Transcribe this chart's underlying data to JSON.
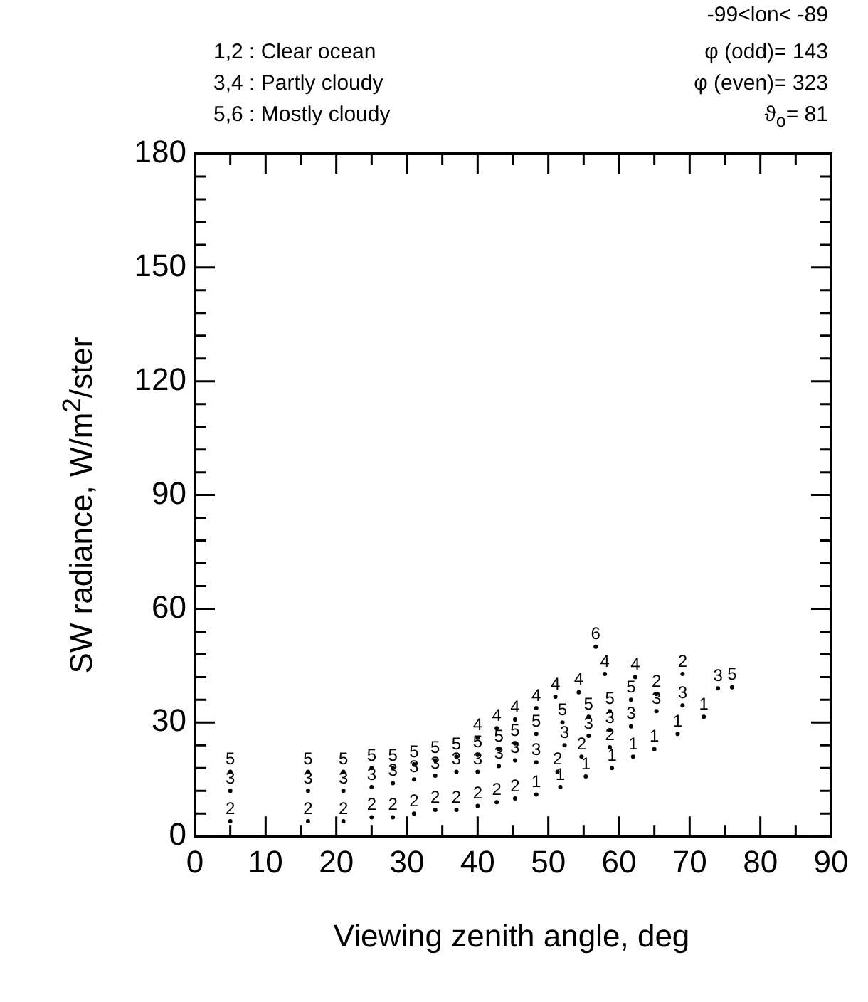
{
  "chart_data": {
    "type": "scatter",
    "xlabel": "Viewing zenith angle, deg",
    "ylabel": "SW radiance, W/m$^{2}$/ster",
    "annotations": [
      "-99<lon< -89",
      "1,2 : Clear ocean",
      "φ (odd)= 143",
      "3,4 : Partly cloudy",
      "φ (even)= 323",
      "5,6 : Mostly cloudy",
      "ϑ$_{o}$= 81"
    ],
    "xlim": [
      0,
      90
    ],
    "xticks": [
      0,
      {
        "value": 5,
        "label": null
      },
      10,
      {
        "value": 15,
        "label": null
      },
      20,
      {
        "value": 25,
        "label": null
      },
      30,
      {
        "value": 35,
        "label": null
      },
      40,
      {
        "value": 45,
        "label": null
      },
      50,
      {
        "value": 55,
        "label": null
      },
      60,
      {
        "value": 65,
        "label": null
      },
      70,
      {
        "value": 75,
        "label": null
      },
      80,
      {
        "value": 85,
        "label": null
      },
      90
    ],
    "ylim": [
      0,
      180
    ],
    "yticks": [
      0,
      {
        "value": 6,
        "label": null
      },
      {
        "value": 12,
        "label": null
      },
      {
        "value": 18,
        "label": null
      },
      {
        "value": 24,
        "label": null
      },
      30,
      {
        "value": 36,
        "label": null
      },
      {
        "value": 42,
        "label": null
      },
      {
        "value": 48,
        "label": null
      },
      {
        "value": 54,
        "label": null
      },
      60,
      {
        "value": 66,
        "label": null
      },
      {
        "value": 72,
        "label": null
      },
      {
        "value": 78,
        "label": null
      },
      {
        "value": 84,
        "label": null
      },
      90,
      {
        "value": 96,
        "label": null
      },
      {
        "value": 102,
        "label": null
      },
      {
        "value": 108,
        "label": null
      },
      {
        "value": 114,
        "label": null
      },
      120,
      {
        "value": 126,
        "label": null
      },
      {
        "value": 132,
        "label": null
      },
      {
        "value": 138,
        "label": null
      },
      {
        "value": 144,
        "label": null
      },
      150,
      {
        "value": 156,
        "label": null
      },
      {
        "value": 162,
        "label": null
      },
      {
        "value": 168,
        "label": null
      },
      {
        "value": 174,
        "label": null
      },
      180
    ],
    "grid": false,
    "legend": false,
    "series": [
      {
        "name": "1",
        "color": "#000000",
        "x": [
          48.3,
          51.7,
          55.3,
          59,
          62,
          65,
          68.3,
          72
        ],
        "values": [
          11,
          13,
          15.8,
          18,
          21,
          23,
          27,
          31.5
        ]
      },
      {
        "name": "2",
        "color": "#000000",
        "x": [
          5,
          16,
          21,
          25,
          28,
          31,
          34,
          37,
          40,
          42.7,
          45.3,
          51.3,
          54.7,
          58.7,
          65.3,
          69
        ],
        "values": [
          4,
          4,
          4,
          5,
          5,
          6,
          7,
          7,
          8,
          9,
          10,
          17,
          21,
          23.5,
          37.5,
          42.8
        ]
      },
      {
        "name": "3",
        "color": "#000000",
        "x": [
          5,
          16,
          21,
          25,
          28,
          31,
          34,
          37,
          40,
          43,
          45.3,
          48.3,
          52.3,
          55.7,
          58.7,
          61.7,
          65.3,
          69,
          74
        ],
        "values": [
          12,
          12,
          12,
          13,
          14,
          15,
          16,
          17,
          17,
          18.5,
          20,
          19.5,
          24,
          26.5,
          28,
          29,
          33,
          34.5,
          39
        ]
      },
      {
        "name": "4",
        "color": "#000000",
        "x": [
          40,
          42.7,
          45.3,
          48.3,
          51,
          54.3,
          58,
          62.3
        ],
        "values": [
          26,
          28.5,
          30.8,
          33.8,
          36.8,
          38,
          42.8,
          42
        ]
      },
      {
        "name": "5",
        "color": "#000000",
        "x": [
          5,
          16,
          21,
          25,
          28,
          31,
          34,
          37,
          40,
          43,
          45.3,
          48.3,
          52,
          55.7,
          58.7,
          61.7,
          76
        ],
        "values": [
          17,
          17,
          17,
          18,
          18,
          19,
          20,
          21,
          21.5,
          23,
          24.5,
          27,
          30,
          31.5,
          33,
          36,
          39.3
        ]
      },
      {
        "name": "6",
        "color": "#000000",
        "x": [
          56.7
        ],
        "values": [
          50
        ]
      }
    ]
  }
}
